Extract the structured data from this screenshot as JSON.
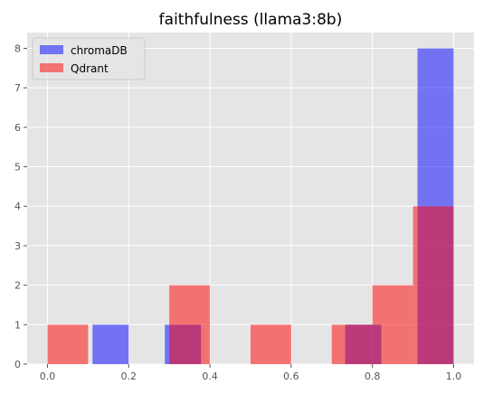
{
  "chart_data": {
    "type": "bar",
    "title": "faithfulness (llama3:8b)",
    "xlabel": "",
    "ylabel": "",
    "xlim": [
      -0.05,
      1.05
    ],
    "ylim": [
      0,
      8.4
    ],
    "x_ticks": [
      0.0,
      0.2,
      0.4,
      0.6,
      0.8,
      1.0
    ],
    "x_tick_labels": [
      "0.0",
      "0.2",
      "0.4",
      "0.6",
      "0.8",
      "1.0"
    ],
    "y_ticks": [
      0,
      1,
      2,
      3,
      4,
      5,
      6,
      7,
      8
    ],
    "y_tick_labels": [
      "0",
      "1",
      "2",
      "3",
      "4",
      "5",
      "6",
      "7",
      "8"
    ],
    "grid": true,
    "legend_position": "top-left",
    "series": [
      {
        "name": "chromaDB",
        "color": "#0000ff",
        "opacity": 0.5,
        "bins": [
          {
            "x0": 0.111,
            "x1": 0.2,
            "count": 1
          },
          {
            "x0": 0.289,
            "x1": 0.378,
            "count": 1
          },
          {
            "x0": 0.733,
            "x1": 0.822,
            "count": 1
          },
          {
            "x0": 0.911,
            "x1": 1.0,
            "count": 8
          }
        ]
      },
      {
        "name": "Qdrant",
        "color": "#ff0000",
        "opacity": 0.5,
        "bins": [
          {
            "x0": 0.0,
            "x1": 0.1,
            "count": 1
          },
          {
            "x0": 0.3,
            "x1": 0.4,
            "count": 2
          },
          {
            "x0": 0.5,
            "x1": 0.6,
            "count": 1
          },
          {
            "x0": 0.7,
            "x1": 0.8,
            "count": 1
          },
          {
            "x0": 0.8,
            "x1": 0.9,
            "count": 2
          },
          {
            "x0": 0.9,
            "x1": 1.0,
            "count": 4
          }
        ]
      }
    ]
  }
}
